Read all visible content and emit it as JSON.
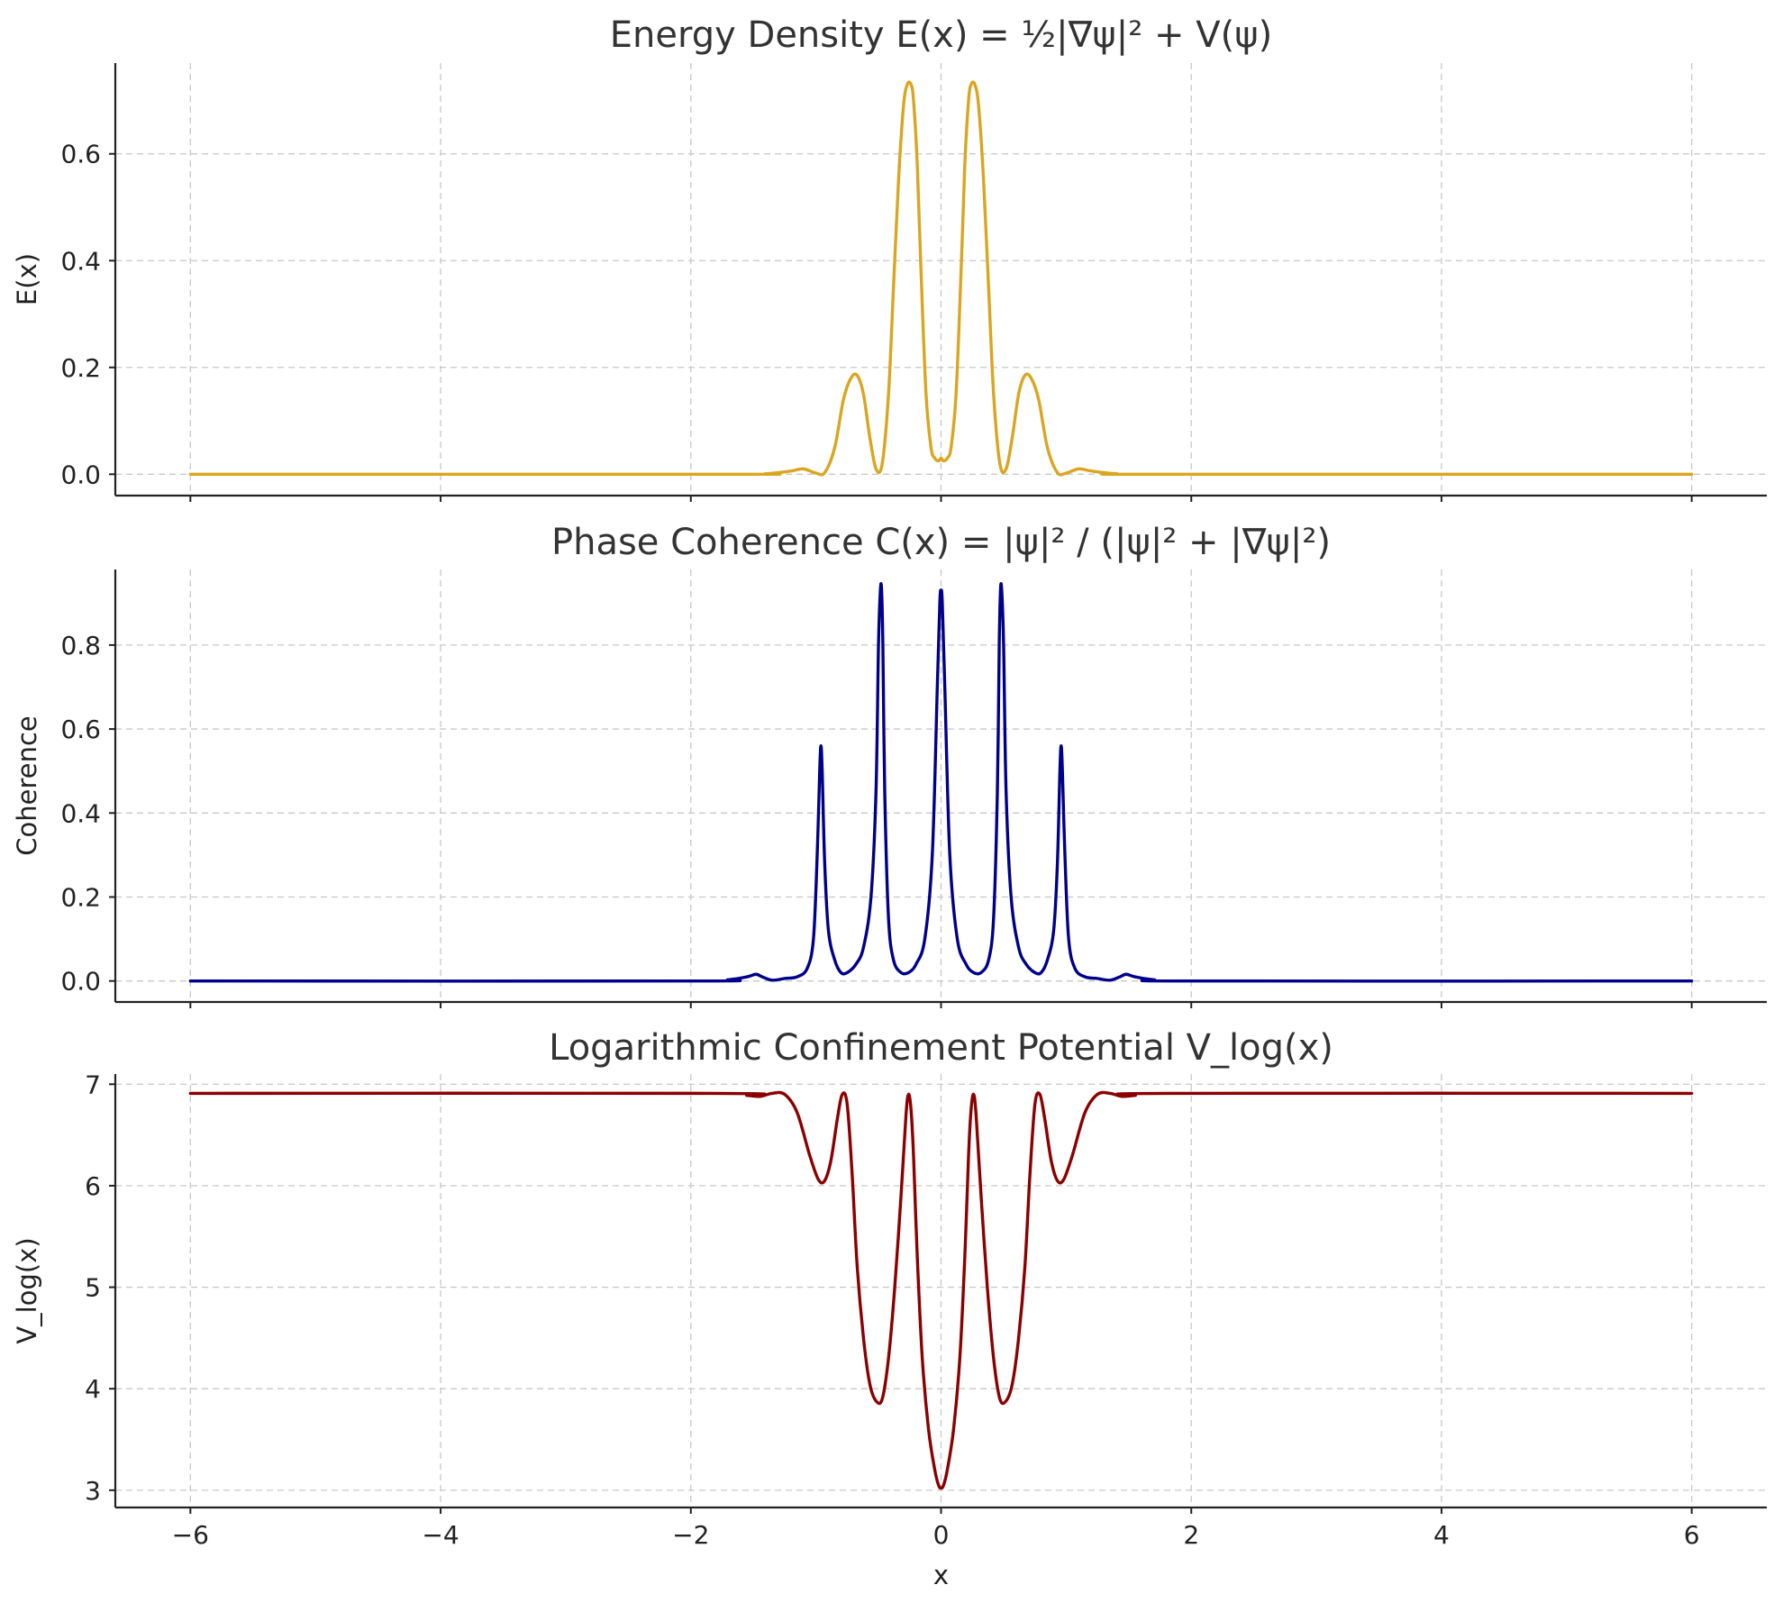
{
  "chart_data": [
    {
      "type": "line",
      "title": "Energy Density E(x) = ½|∇ψ|² + V(ψ)",
      "xlabel": "",
      "ylabel": "E(x)",
      "xlim": [
        -6.6,
        6.6
      ],
      "ylim": [
        -0.04,
        0.77
      ],
      "xticks": [
        "−6",
        "−4",
        "−2",
        "0",
        "2",
        "4",
        "6"
      ],
      "yticks": [
        "0.0",
        "0.2",
        "0.4",
        "0.6"
      ],
      "grid": true,
      "series": [
        {
          "color": "#DAA520",
          "x": [
            -6,
            -1.7,
            -1.4,
            -1.2,
            -1.1,
            -1.0,
            -0.93,
            -0.85,
            -0.78,
            -0.72,
            -0.67,
            -0.62,
            -0.57,
            -0.52,
            -0.47,
            -0.42,
            -0.38,
            -0.34,
            -0.3,
            -0.27,
            -0.24,
            -0.22,
            -0.19,
            -0.16,
            -0.12,
            -0.08,
            -0.05,
            -0.02,
            0,
            0.02,
            0.05,
            0.08,
            0.12,
            0.16,
            0.19,
            0.22,
            0.24,
            0.27,
            0.3,
            0.34,
            0.38,
            0.42,
            0.47,
            0.52,
            0.57,
            0.62,
            0.67,
            0.72,
            0.78,
            0.85,
            0.93,
            1.0,
            1.1,
            1.2,
            1.4,
            1.7,
            6
          ],
          "y": [
            0,
            0,
            0.001,
            0.006,
            0.01,
            0.002,
            0.003,
            0.05,
            0.14,
            0.18,
            0.185,
            0.15,
            0.07,
            0.01,
            0.02,
            0.15,
            0.35,
            0.55,
            0.69,
            0.73,
            0.73,
            0.7,
            0.58,
            0.38,
            0.15,
            0.05,
            0.03,
            0.025,
            0.03,
            0.025,
            0.03,
            0.05,
            0.15,
            0.38,
            0.58,
            0.7,
            0.73,
            0.73,
            0.69,
            0.55,
            0.35,
            0.15,
            0.02,
            0.01,
            0.07,
            0.15,
            0.185,
            0.18,
            0.14,
            0.05,
            0.003,
            0.002,
            0.01,
            0.006,
            0.001,
            0,
            0
          ]
        }
      ]
    },
    {
      "type": "line",
      "title": "Phase Coherence C(x) = |ψ|² / (|ψ|² + |∇ψ|²)",
      "xlabel": "",
      "ylabel": "Coherence",
      "xlim": [
        -6.6,
        6.6
      ],
      "ylim": [
        -0.05,
        0.98
      ],
      "xticks": [
        "−6",
        "−4",
        "−2",
        "0",
        "2",
        "4",
        "6"
      ],
      "yticks": [
        "0.0",
        "0.2",
        "0.4",
        "0.6",
        "0.8"
      ],
      "grid": true,
      "series": [
        {
          "color": "#00008B",
          "x": [
            -6,
            -2.0,
            -1.7,
            -1.55,
            -1.48,
            -1.43,
            -1.35,
            -1.25,
            -1.15,
            -1.07,
            -1.02,
            -0.99,
            -0.97,
            -0.96,
            -0.95,
            -0.93,
            -0.9,
            -0.85,
            -0.8,
            -0.75,
            -0.68,
            -0.62,
            -0.56,
            -0.52,
            -0.5,
            -0.485,
            -0.475,
            -0.465,
            -0.45,
            -0.42,
            -0.38,
            -0.32,
            -0.26,
            -0.2,
            -0.13,
            -0.07,
            -0.03,
            -0.01,
            0,
            0.01,
            0.03,
            0.07,
            0.13,
            0.2,
            0.26,
            0.32,
            0.38,
            0.42,
            0.45,
            0.465,
            0.475,
            0.485,
            0.5,
            0.52,
            0.56,
            0.62,
            0.68,
            0.75,
            0.8,
            0.85,
            0.9,
            0.93,
            0.95,
            0.96,
            0.97,
            0.99,
            1.02,
            1.07,
            1.15,
            1.25,
            1.35,
            1.43,
            1.48,
            1.55,
            1.7,
            2.0,
            6
          ],
          "y": [
            0,
            0.0,
            0.003,
            0.01,
            0.016,
            0.01,
            0.002,
            0.006,
            0.01,
            0.03,
            0.1,
            0.3,
            0.5,
            0.56,
            0.5,
            0.28,
            0.12,
            0.05,
            0.02,
            0.02,
            0.04,
            0.08,
            0.2,
            0.45,
            0.8,
            0.93,
            0.93,
            0.8,
            0.45,
            0.15,
            0.05,
            0.02,
            0.02,
            0.04,
            0.1,
            0.3,
            0.7,
            0.9,
            0.93,
            0.9,
            0.7,
            0.3,
            0.1,
            0.04,
            0.02,
            0.02,
            0.05,
            0.15,
            0.45,
            0.8,
            0.93,
            0.93,
            0.8,
            0.45,
            0.2,
            0.08,
            0.04,
            0.02,
            0.02,
            0.05,
            0.12,
            0.28,
            0.5,
            0.56,
            0.5,
            0.3,
            0.1,
            0.03,
            0.01,
            0.006,
            0.002,
            0.01,
            0.016,
            0.01,
            0.003,
            0.0,
            0
          ]
        }
      ]
    },
    {
      "type": "line",
      "title": "Logarithmic Confinement Potential V_log(x)",
      "xlabel": "x",
      "ylabel": "V_log(x)",
      "xlim": [
        -6.6,
        6.6
      ],
      "ylim": [
        2.83,
        7.1
      ],
      "xticks": [
        "−6",
        "−4",
        "−2",
        "0",
        "2",
        "4",
        "6"
      ],
      "yticks": [
        "3",
        "4",
        "5",
        "6",
        "7"
      ],
      "grid": true,
      "series": [
        {
          "color": "#8B0000",
          "x": [
            -6,
            -1.8,
            -1.55,
            -1.45,
            -1.35,
            -1.25,
            -1.15,
            -1.05,
            -0.98,
            -0.93,
            -0.88,
            -0.83,
            -0.79,
            -0.75,
            -0.71,
            -0.67,
            -0.62,
            -0.57,
            -0.52,
            -0.47,
            -0.42,
            -0.37,
            -0.32,
            -0.28,
            -0.26,
            -0.24,
            -0.22,
            -0.19,
            -0.15,
            -0.1,
            -0.05,
            -0.02,
            0,
            0.02,
            0.05,
            0.1,
            0.15,
            0.19,
            0.22,
            0.24,
            0.26,
            0.28,
            0.32,
            0.37,
            0.42,
            0.47,
            0.52,
            0.57,
            0.62,
            0.67,
            0.71,
            0.75,
            0.79,
            0.83,
            0.88,
            0.93,
            0.98,
            1.05,
            1.15,
            1.25,
            1.35,
            1.45,
            1.55,
            1.8,
            6
          ],
          "y": [
            6.91,
            6.91,
            6.89,
            6.88,
            6.91,
            6.9,
            6.72,
            6.3,
            6.06,
            6.05,
            6.25,
            6.65,
            6.9,
            6.8,
            6.1,
            5.2,
            4.5,
            4.05,
            3.88,
            3.9,
            4.3,
            5.0,
            5.9,
            6.7,
            6.9,
            6.75,
            6.3,
            5.3,
            4.3,
            3.6,
            3.2,
            3.05,
            3.02,
            3.05,
            3.2,
            3.6,
            4.3,
            5.3,
            6.3,
            6.75,
            6.9,
            6.7,
            5.9,
            5.0,
            4.3,
            3.9,
            3.88,
            4.05,
            4.5,
            5.2,
            6.1,
            6.8,
            6.9,
            6.65,
            6.25,
            6.05,
            6.06,
            6.3,
            6.72,
            6.9,
            6.91,
            6.88,
            6.89,
            6.91,
            6.91
          ]
        }
      ]
    }
  ]
}
